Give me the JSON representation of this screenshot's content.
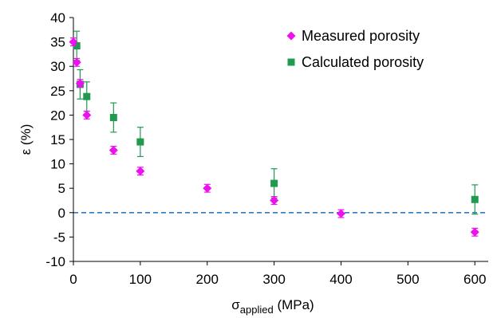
{
  "colors": {
    "measured": "#ee10ee",
    "calculated": "#1f9a4f",
    "reference_line": "#2f7bbf",
    "axis": "#000000"
  },
  "chart_data": {
    "type": "scatter",
    "title": "",
    "xlabel": "σ",
    "xlabel_subscript": "applied",
    "xlabel_unit": " (MPa)",
    "ylabel": "ε (%)",
    "xlim": [
      0,
      620
    ],
    "ylim": [
      -10,
      40
    ],
    "xticks": [
      "0",
      "100",
      "200",
      "300",
      "400",
      "500",
      "600"
    ],
    "xtick_values": [
      0,
      100,
      200,
      300,
      400,
      500,
      600
    ],
    "yticks": [
      "-10",
      "-5",
      "0",
      "5",
      "10",
      "15",
      "20",
      "25",
      "30",
      "35",
      "40"
    ],
    "ytick_values": [
      -10,
      -5,
      0,
      5,
      10,
      15,
      20,
      25,
      30,
      35,
      40
    ],
    "grid": false,
    "legend_position": "top-right",
    "reference_line": {
      "y": 0,
      "style": "dashed"
    },
    "series": [
      {
        "name": "Measured porosity",
        "marker": "diamond",
        "x": [
          0,
          5,
          10,
          20,
          60,
          100,
          200,
          300,
          400,
          600
        ],
        "y": [
          35,
          30.8,
          26.5,
          20,
          12.8,
          8.5,
          5,
          2.5,
          -0.2,
          -4
        ],
        "yerr": [
          0.8,
          0.8,
          0.8,
          0.8,
          0.8,
          0.8,
          0.8,
          0.8,
          0.8,
          0.8
        ]
      },
      {
        "name": "Calculated porosity",
        "marker": "square",
        "x": [
          5,
          10,
          20,
          60,
          100,
          300,
          600
        ],
        "y": [
          34.2,
          26.3,
          23.8,
          19.5,
          14.5,
          6,
          2.7
        ],
        "yerr": [
          3,
          3,
          3,
          3,
          3,
          3,
          3
        ]
      }
    ]
  }
}
